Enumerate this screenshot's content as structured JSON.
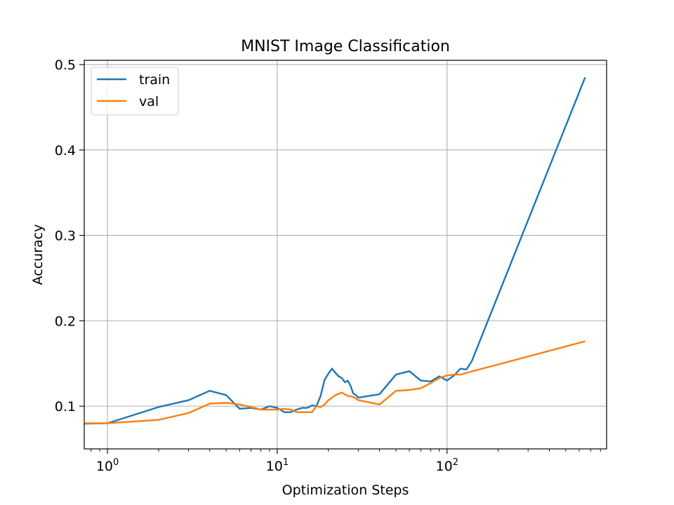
{
  "chart_data": {
    "type": "line",
    "title": "MNIST Image Classification",
    "xlabel": "Optimization Steps",
    "ylabel": "Accuracy",
    "xscale": "log",
    "xlim": [
      0.73,
      870
    ],
    "ylim": [
      0.05,
      0.505
    ],
    "grid": true,
    "legend_position": "top-left",
    "x_major_ticks": [
      {
        "value": 1,
        "base": "10",
        "exp": "0"
      },
      {
        "value": 10,
        "base": "10",
        "exp": "1"
      },
      {
        "value": 100,
        "base": "10",
        "exp": "2"
      }
    ],
    "y_ticks": [
      0.1,
      0.2,
      0.3,
      0.4,
      0.5
    ],
    "y_tick_labels": [
      "0.1",
      "0.2",
      "0.3",
      "0.4",
      "0.5"
    ],
    "series": [
      {
        "name": "train",
        "color": "#1f77b4",
        "points": [
          [
            0.5,
            0.079
          ],
          [
            1,
            0.08
          ],
          [
            2,
            0.099
          ],
          [
            3,
            0.107
          ],
          [
            4,
            0.118
          ],
          [
            5,
            0.113
          ],
          [
            6,
            0.097
          ],
          [
            7,
            0.098
          ],
          [
            8,
            0.096
          ],
          [
            9,
            0.1
          ],
          [
            10,
            0.098
          ],
          [
            11,
            0.093
          ],
          [
            12,
            0.093
          ],
          [
            13,
            0.096
          ],
          [
            14,
            0.098
          ],
          [
            15,
            0.098
          ],
          [
            16,
            0.101
          ],
          [
            17,
            0.1
          ],
          [
            18,
            0.112
          ],
          [
            19,
            0.131
          ],
          [
            20,
            0.138
          ],
          [
            21,
            0.144
          ],
          [
            22,
            0.139
          ],
          [
            23,
            0.135
          ],
          [
            24,
            0.133
          ],
          [
            25,
            0.128
          ],
          [
            26,
            0.13
          ],
          [
            27,
            0.124
          ],
          [
            28,
            0.115
          ],
          [
            29,
            0.113
          ],
          [
            30,
            0.11
          ],
          [
            40,
            0.114
          ],
          [
            50,
            0.137
          ],
          [
            60,
            0.141
          ],
          [
            70,
            0.13
          ],
          [
            80,
            0.129
          ],
          [
            90,
            0.135
          ],
          [
            100,
            0.13
          ],
          [
            110,
            0.136
          ],
          [
            120,
            0.144
          ],
          [
            130,
            0.143
          ],
          [
            140,
            0.153
          ],
          [
            650,
            0.485
          ]
        ]
      },
      {
        "name": "val",
        "color": "#ff7f0e",
        "points": [
          [
            0.5,
            0.08
          ],
          [
            1,
            0.08
          ],
          [
            2,
            0.084
          ],
          [
            3,
            0.092
          ],
          [
            4,
            0.103
          ],
          [
            5,
            0.104
          ],
          [
            6,
            0.102
          ],
          [
            7,
            0.099
          ],
          [
            8,
            0.096
          ],
          [
            9,
            0.096
          ],
          [
            10,
            0.096
          ],
          [
            11,
            0.097
          ],
          [
            12,
            0.096
          ],
          [
            13,
            0.093
          ],
          [
            14,
            0.093
          ],
          [
            15,
            0.093
          ],
          [
            16,
            0.093
          ],
          [
            17,
            0.1
          ],
          [
            18,
            0.099
          ],
          [
            19,
            0.102
          ],
          [
            20,
            0.107
          ],
          [
            22,
            0.113
          ],
          [
            24,
            0.116
          ],
          [
            26,
            0.112
          ],
          [
            28,
            0.111
          ],
          [
            30,
            0.107
          ],
          [
            40,
            0.102
          ],
          [
            50,
            0.118
          ],
          [
            60,
            0.119
          ],
          [
            70,
            0.121
          ],
          [
            80,
            0.127
          ],
          [
            90,
            0.133
          ],
          [
            100,
            0.136
          ],
          [
            110,
            0.137
          ],
          [
            120,
            0.137
          ],
          [
            130,
            0.139
          ],
          [
            650,
            0.176
          ]
        ]
      }
    ]
  }
}
